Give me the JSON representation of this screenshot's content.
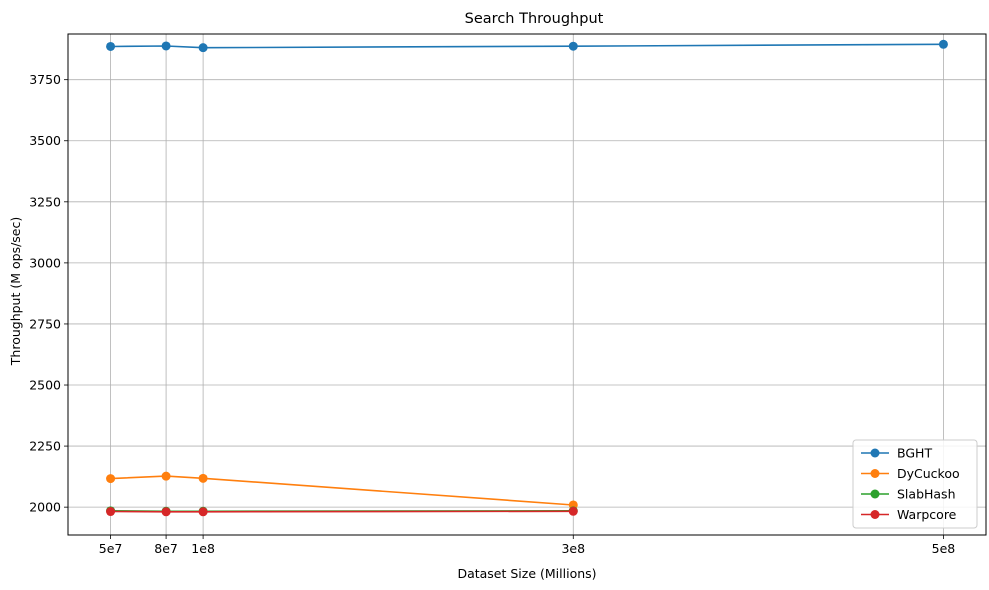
{
  "chart_data": {
    "type": "line",
    "title": "Search Throughput",
    "xlabel": "Dataset Size (Millions)",
    "ylabel": "Throughput (M ops/sec)",
    "x_ticks": [
      {
        "value": 50000000,
        "label": "5e7"
      },
      {
        "value": 80000000,
        "label": "8e7"
      },
      {
        "value": 100000000,
        "label": "1e8"
      },
      {
        "value": 300000000,
        "label": "3e8"
      },
      {
        "value": 500000000,
        "label": "5e8"
      }
    ],
    "y_ticks": [
      2000,
      2250,
      2500,
      2750,
      3000,
      3250,
      3500,
      3750
    ],
    "xlim": [
      27000000,
      523000000
    ],
    "ylim": [
      1886,
      3937
    ],
    "grid": true,
    "legend_position": "lower right",
    "series": [
      {
        "name": "BGHT",
        "color": "#1f77b4",
        "x": [
          50000000,
          80000000,
          100000000,
          300000000,
          500000000
        ],
        "y": [
          3886,
          3888,
          3881,
          3887,
          3895
        ]
      },
      {
        "name": "DyCuckoo",
        "color": "#ff7f0e",
        "x": [
          50000000,
          80000000,
          100000000,
          300000000
        ],
        "y": [
          2117,
          2127,
          2118,
          2009
        ]
      },
      {
        "name": "SlabHash",
        "color": "#2ca02c",
        "x": [
          50000000,
          80000000,
          100000000,
          300000000
        ],
        "y": [
          1985,
          1983,
          1983,
          1985
        ]
      },
      {
        "name": "Warpcore",
        "color": "#d62728",
        "x": [
          50000000,
          80000000,
          100000000,
          300000000
        ],
        "y": [
          1982,
          1981,
          1981,
          1983
        ]
      }
    ]
  }
}
